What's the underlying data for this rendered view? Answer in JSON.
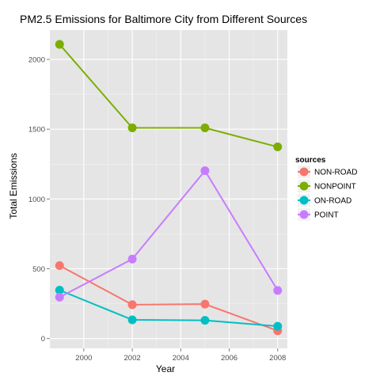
{
  "chart_data": {
    "type": "line",
    "title": "PM2.5 Emissions for Baltimore City from Different Sources",
    "xlabel": "Year",
    "ylabel": "Total Emissions",
    "x": [
      1999,
      2002,
      2005,
      2008
    ],
    "xlim": [
      1998.6,
      2008.4
    ],
    "ylim": [
      -70,
      2210
    ],
    "xticks": [
      2000,
      2002,
      2004,
      2006,
      2008
    ],
    "yticks": [
      0,
      500,
      1000,
      1500,
      2000
    ],
    "grid": true,
    "legend": {
      "title": "sources",
      "position": "right"
    },
    "series": [
      {
        "name": "NON-ROAD",
        "color": "#f8766d",
        "values": [
          522.9,
          242.8,
          246.8,
          55.8
        ]
      },
      {
        "name": "NONPOINT",
        "color": "#7cae00",
        "values": [
          2107.6,
          1509.5,
          1509.5,
          1373.2
        ]
      },
      {
        "name": "ON-ROAD",
        "color": "#00bfc4",
        "values": [
          346.8,
          134.3,
          130.4,
          88.3
        ]
      },
      {
        "name": "POINT",
        "color": "#c77cff",
        "values": [
          296.8,
          569.3,
          1202.5,
          344.98
        ]
      }
    ]
  }
}
